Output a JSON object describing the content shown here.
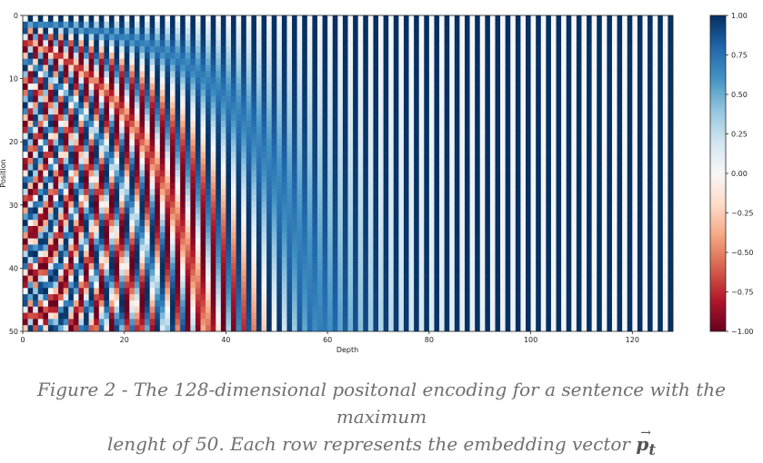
{
  "chart_data": {
    "type": "heatmap",
    "rows": 51,
    "columns": 128,
    "d_model": 128,
    "xlabel": "Depth",
    "ylabel": "Position",
    "xlim": [
      0,
      128
    ],
    "ylim": [
      50,
      0
    ],
    "xticks": [
      "0",
      "20",
      "40",
      "60",
      "80",
      "100",
      "120"
    ],
    "yticks": [
      "0",
      "10",
      "20",
      "30",
      "40",
      "50"
    ],
    "colormap": "RdBu",
    "colorbar": {
      "range": [
        -1.0,
        1.0
      ],
      "ticks": [
        "1.00",
        "0.75",
        "0.50",
        "0.25",
        "0.00",
        "−0.25",
        "−0.50",
        "−0.75",
        "−1.00"
      ],
      "colors": [
        "#67001f",
        "#b2182b",
        "#d6604d",
        "#f4a582",
        "#fddbc7",
        "#f7f7f7",
        "#d1e5f0",
        "#92c5de",
        "#4393c3",
        "#2166ac",
        "#053061"
      ]
    }
  },
  "caption": {
    "line1": "Figure 2 - The 128-dimensional positonal encoding for a sentence with the maximum",
    "line2": "lenght of 50. Each row represents the embedding vector ",
    "vector_symbol": "p",
    "vector_subscript": "t",
    "vector_arrow": "→"
  }
}
